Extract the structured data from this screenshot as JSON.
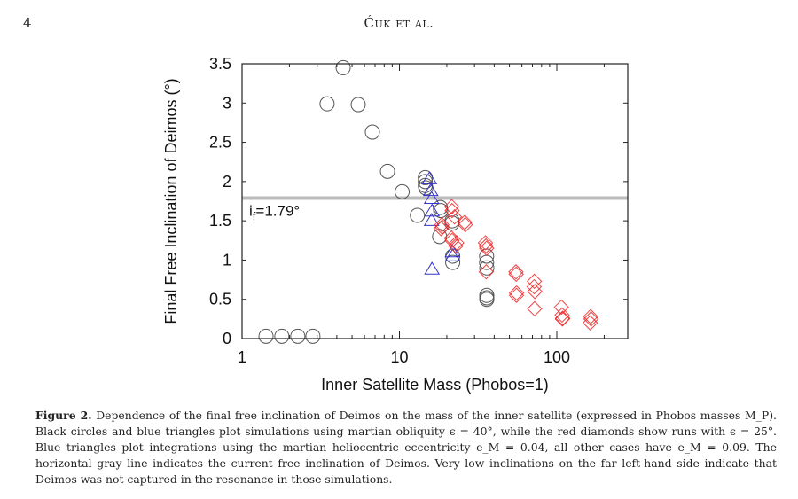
{
  "header": {
    "page_number": "4",
    "running_head": "Ćuk et al."
  },
  "chart_data": {
    "type": "scatter",
    "title": "",
    "xlabel": "Inner Satellite Mass (Phobos=1)",
    "ylabel": "Final Free Inclination of Deimos (°)",
    "xscale": "log",
    "xlim": [
      1,
      300
    ],
    "ylim": [
      0,
      3.5
    ],
    "xticks": [
      1,
      10,
      100
    ],
    "xtick_labels": [
      "1",
      "10",
      "100"
    ],
    "yticks": [
      0,
      0.5,
      1,
      1.5,
      2,
      2.5,
      3,
      3.5
    ],
    "ytick_labels": [
      "0",
      "0.5",
      "1",
      "1.5",
      "2",
      "2.5",
      "3",
      "3.5"
    ],
    "grid": false,
    "reference_line": {
      "y": 1.79,
      "label_main": "i",
      "label_sub": "f",
      "label_rest": "=1.79°",
      "color": "#bbbbbb"
    },
    "series": [
      {
        "name": "Black circles (ε=40°, e_M=0.09)",
        "marker": "circle",
        "color": "#555555",
        "points": [
          [
            1.42,
            0.03
          ],
          [
            1.79,
            0.03
          ],
          [
            2.26,
            0.03
          ],
          [
            2.82,
            0.03
          ],
          [
            3.47,
            2.99
          ],
          [
            4.39,
            3.45
          ],
          [
            5.47,
            2.98
          ],
          [
            6.73,
            2.63
          ],
          [
            8.4,
            2.13
          ],
          [
            10.4,
            1.87
          ],
          [
            13.0,
            1.57
          ],
          [
            14.6,
            2.05
          ],
          [
            14.6,
            2.0
          ],
          [
            14.6,
            1.95
          ],
          [
            14.7,
            1.92
          ],
          [
            18.2,
            1.67
          ],
          [
            18.3,
            1.63
          ],
          [
            18.0,
            1.3
          ],
          [
            21.6,
            1.5
          ],
          [
            21.6,
            1.47
          ],
          [
            21.8,
            1.05
          ],
          [
            21.8,
            0.97
          ],
          [
            35.8,
            1.05
          ],
          [
            35.8,
            0.97
          ],
          [
            35.9,
            0.9
          ],
          [
            35.9,
            0.55
          ],
          [
            35.9,
            0.52
          ],
          [
            35.9,
            0.5
          ]
        ]
      },
      {
        "name": "Blue triangles (e_M=0.04)",
        "marker": "triangle",
        "color": "#3333cc",
        "points": [
          [
            15.5,
            2.03
          ],
          [
            15.8,
            1.88
          ],
          [
            16.0,
            1.78
          ],
          [
            16.1,
            1.62
          ],
          [
            16.0,
            1.5
          ],
          [
            16.1,
            0.88
          ],
          [
            21.7,
            1.1
          ],
          [
            21.8,
            1.05
          ]
        ]
      },
      {
        "name": "Red diamonds (ε=25°)",
        "marker": "diamond",
        "color": "#ee2222",
        "points": [
          [
            18.6,
            1.45
          ],
          [
            18.7,
            1.42
          ],
          [
            18.4,
            1.4
          ],
          [
            21.5,
            1.68
          ],
          [
            21.6,
            1.63
          ],
          [
            22.4,
            1.55
          ],
          [
            21.4,
            1.28
          ],
          [
            21.6,
            1.25
          ],
          [
            23.1,
            1.22
          ],
          [
            22.8,
            1.18
          ],
          [
            26.0,
            1.48
          ],
          [
            26.2,
            1.45
          ],
          [
            35.2,
            1.22
          ],
          [
            35.5,
            1.18
          ],
          [
            35.8,
            1.15
          ],
          [
            35.6,
            0.85
          ],
          [
            55.0,
            0.85
          ],
          [
            55.2,
            0.82
          ],
          [
            55.5,
            0.58
          ],
          [
            55.4,
            0.55
          ],
          [
            72.0,
            0.73
          ],
          [
            71.8,
            0.66
          ],
          [
            72.5,
            0.6
          ],
          [
            72.3,
            0.38
          ],
          [
            107.0,
            0.4
          ],
          [
            108.0,
            0.3
          ],
          [
            109.0,
            0.26
          ],
          [
            108.5,
            0.25
          ],
          [
            164.0,
            0.28
          ],
          [
            165.0,
            0.25
          ],
          [
            163.0,
            0.2
          ]
        ]
      }
    ]
  },
  "caption": {
    "label": "Figure 2.",
    "text": " Dependence of the final free inclination of Deimos on the mass of the inner satellite (expressed in Phobos masses M_P). Black circles and blue triangles plot simulations using martian obliquity ϵ = 40°, while the red diamonds show runs with ϵ = 25°. Blue triangles plot integrations using the martian heliocentric eccentricity e_M = 0.04, all other cases have e_M = 0.09. The horizontal gray line indicates the current free inclination of Deimos. Very low inclinations on the far left-hand side indicate that Deimos was not captured in the resonance in those simulations."
  }
}
